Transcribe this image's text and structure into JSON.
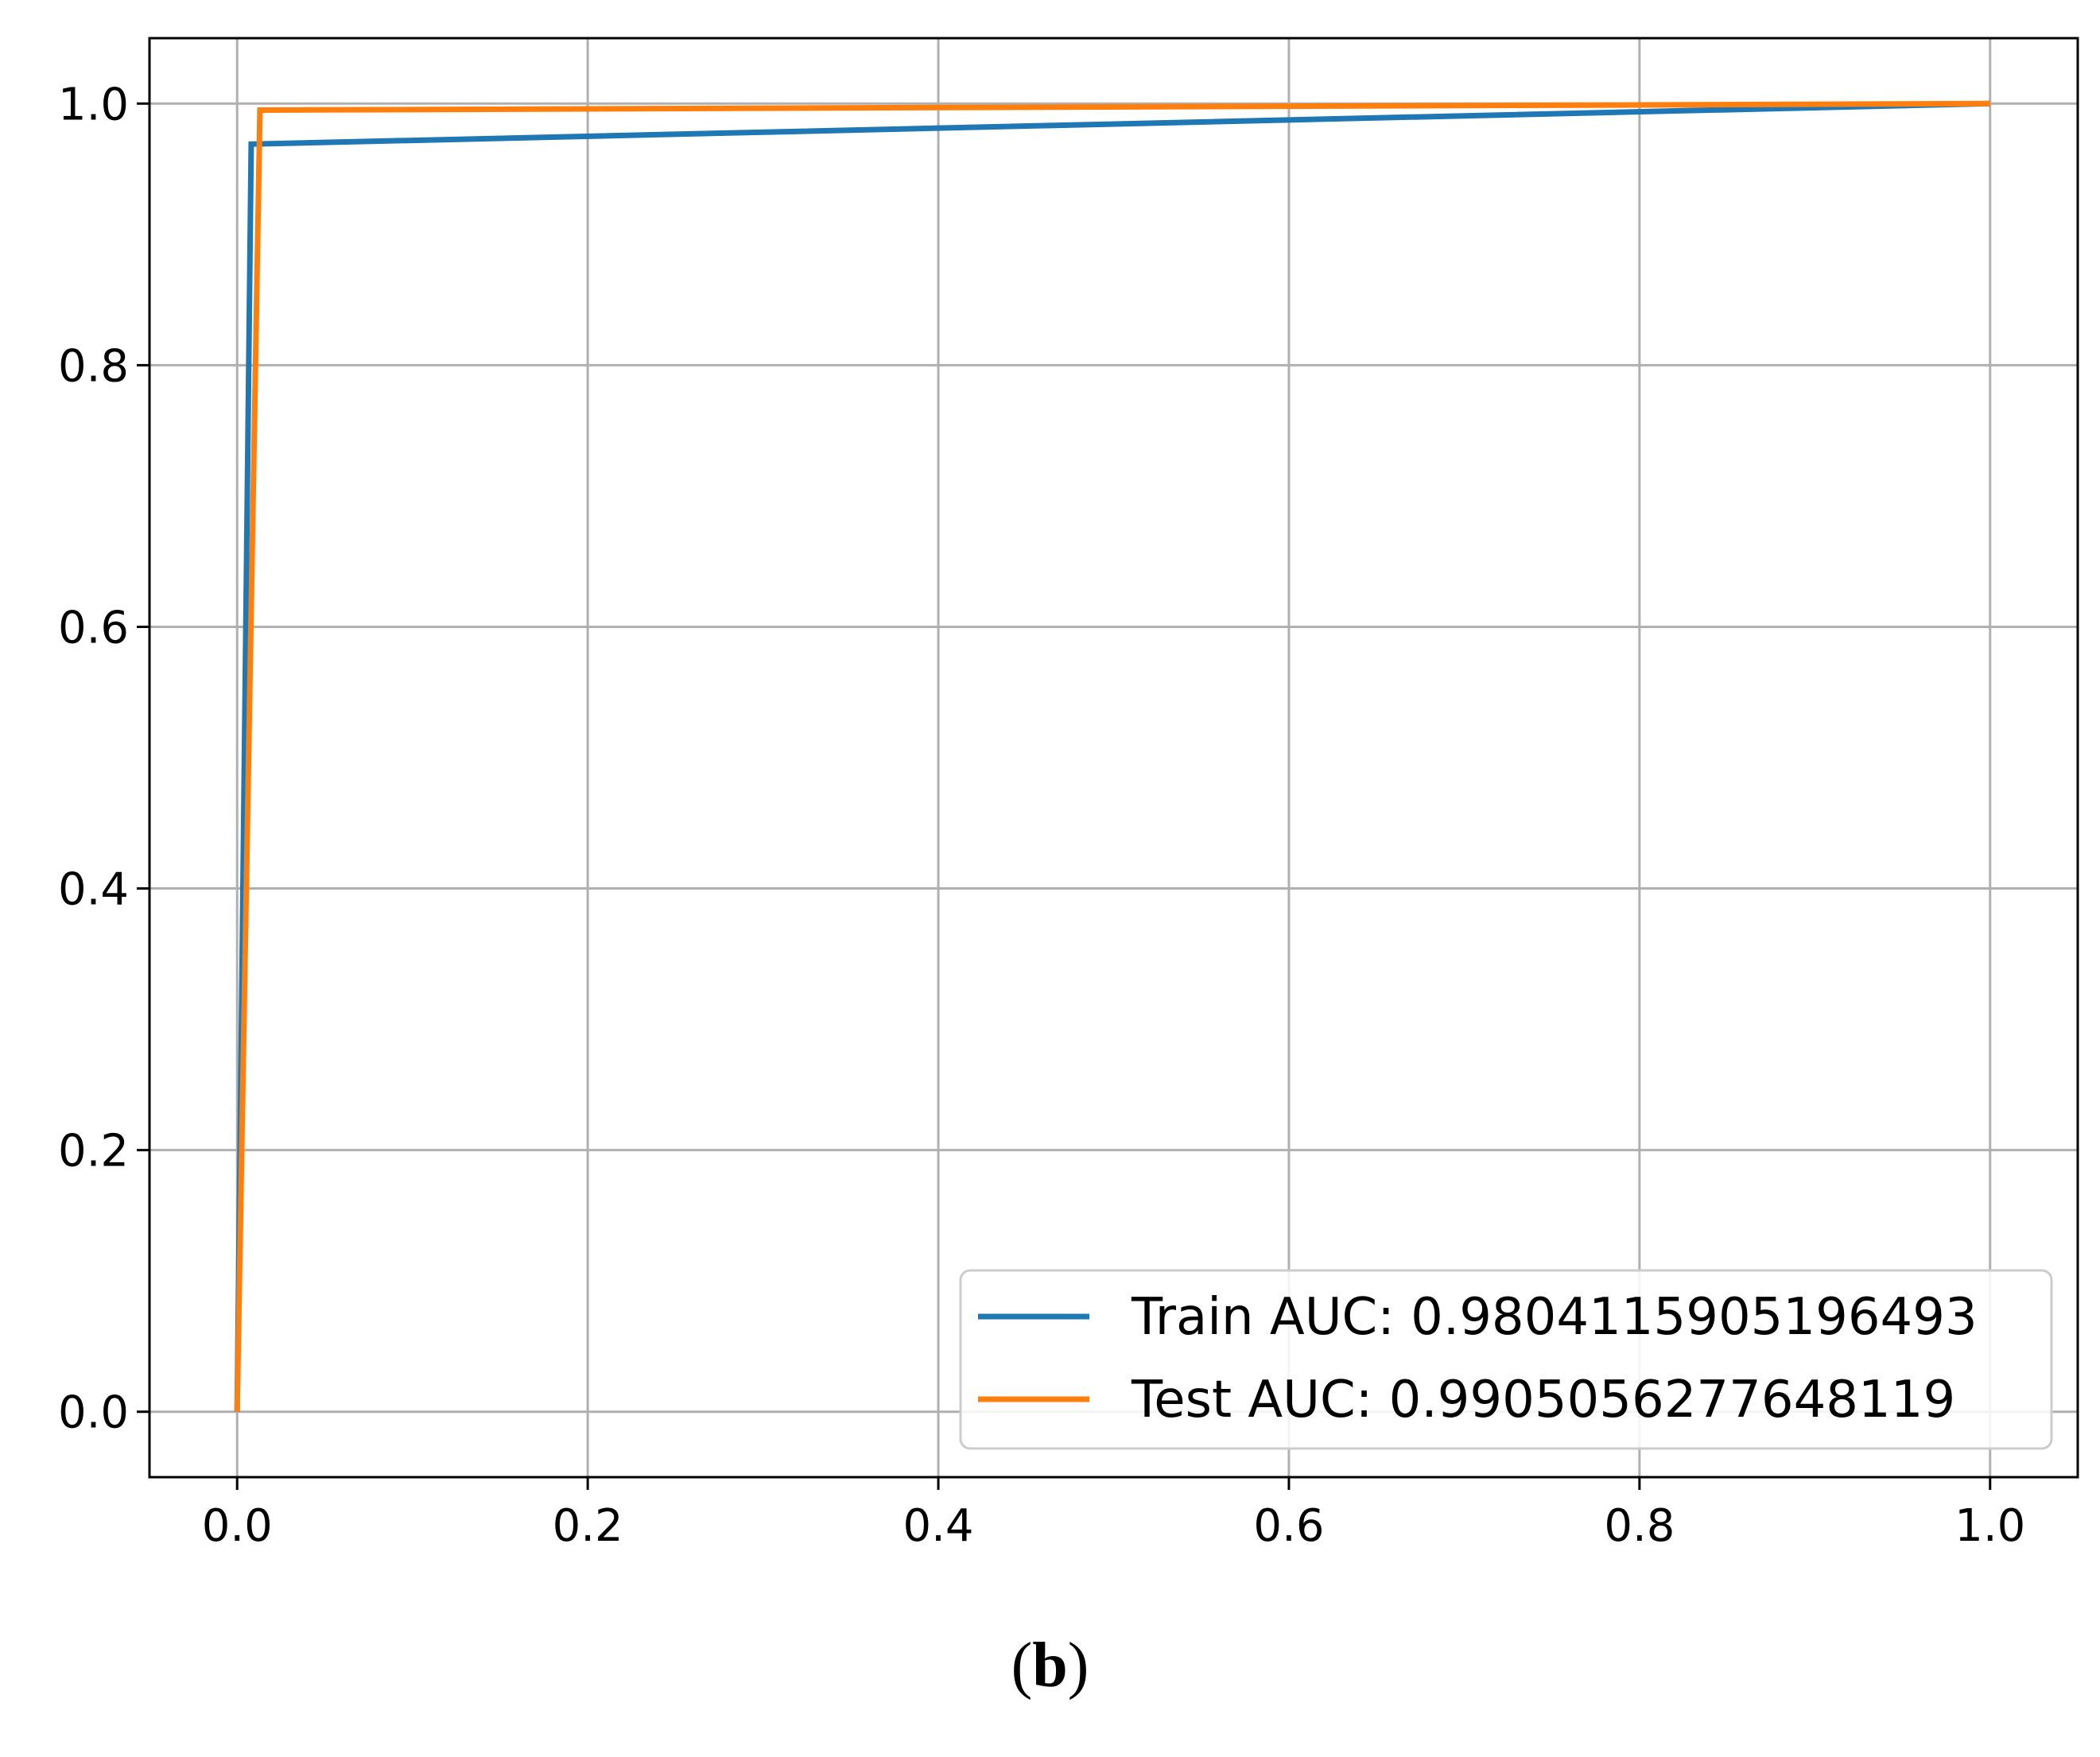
{
  "chart_data": {
    "type": "line",
    "title": "",
    "xlabel": "",
    "ylabel": "",
    "xlim": [
      -0.05,
      1.05
    ],
    "ylim": [
      -0.05,
      1.05
    ],
    "xticks": [
      "0.0",
      "0.2",
      "0.4",
      "0.6",
      "0.8",
      "1.0"
    ],
    "yticks": [
      "0.0",
      "0.2",
      "0.4",
      "0.6",
      "0.8",
      "1.0"
    ],
    "grid": true,
    "legend_position": "lower-right",
    "series": [
      {
        "name": "Train AUC: 0.9804115905196493",
        "color": "#1f77b4",
        "x": [
          0.0,
          0.008,
          1.0
        ],
        "y": [
          0.0,
          0.969,
          1.0
        ]
      },
      {
        "name": "Test AUC: 0.9905056277648119",
        "color": "#ff7f0e",
        "x": [
          0.0,
          0.013,
          1.0
        ],
        "y": [
          0.0,
          0.995,
          1.0
        ]
      }
    ]
  },
  "panel": {
    "open": "(",
    "letter": "b",
    "close": ")"
  }
}
